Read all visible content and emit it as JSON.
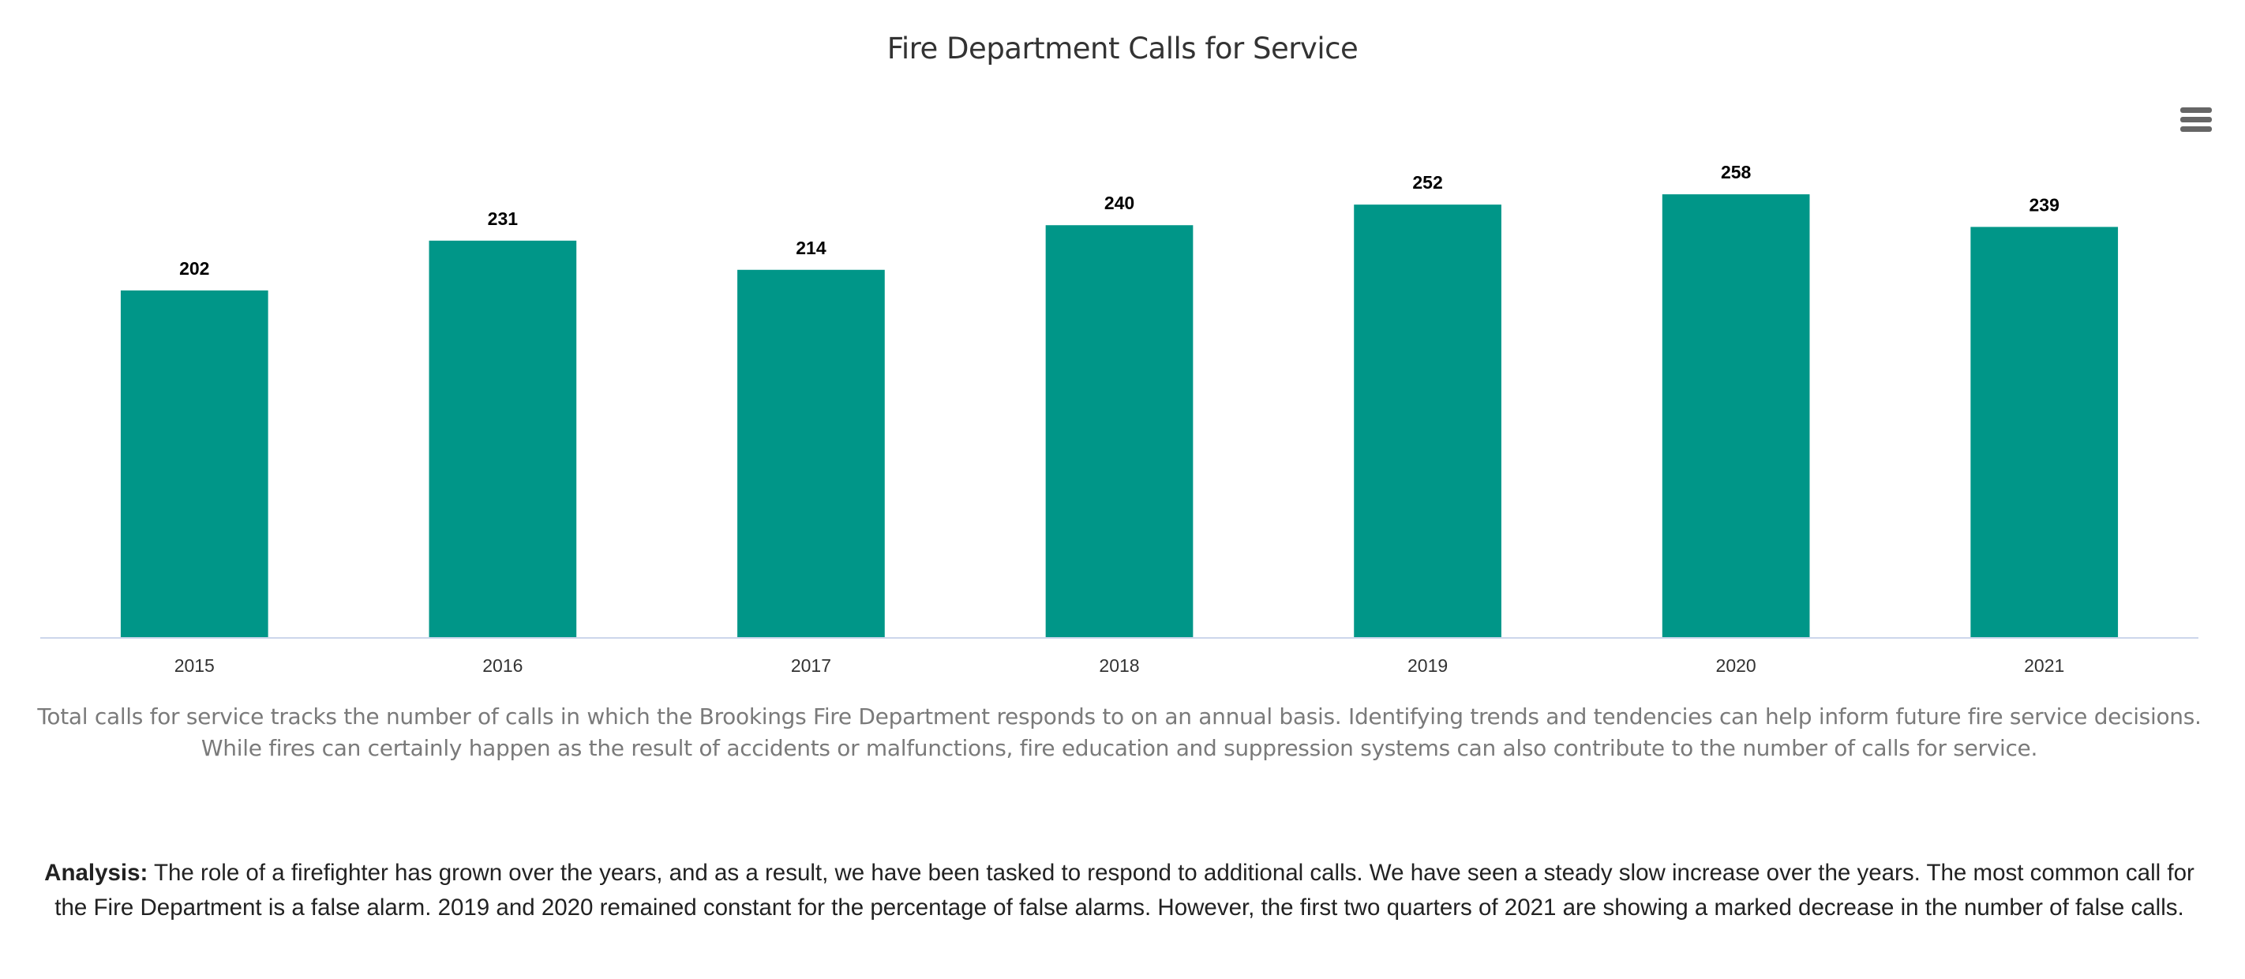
{
  "chart_data": {
    "type": "bar",
    "title": "Fire Department Calls for Service",
    "categories": [
      "2015",
      "2016",
      "2017",
      "2018",
      "2019",
      "2020",
      "2021"
    ],
    "values": [
      202,
      231,
      214,
      240,
      252,
      258,
      239
    ],
    "xlabel": "",
    "ylabel": "",
    "ylim": [
      0,
      300
    ],
    "grid": false,
    "legend": "none",
    "bar_color": "#009688"
  },
  "menu_icon": "hamburger-menu-icon",
  "description": "Total calls for service tracks the number of calls in which the Brookings Fire Department responds to on an annual basis. Identifying trends and tendencies can help inform future fire service decisions. While fires can certainly happen as the result of accidents or malfunctions, fire education and suppression systems can also contribute to the number of calls for service.",
  "analysis": {
    "label": "Analysis:",
    "text": " The role of a firefighter has grown over the years, and as a result, we have been tasked to respond to additional calls. We have seen a steady slow increase over the years. The most common call for the Fire Department is a false alarm. 2019 and 2020 remained constant for the percentage of false alarms. However, the first two quarters of 2021 are showing a marked decrease in the number of false calls."
  }
}
